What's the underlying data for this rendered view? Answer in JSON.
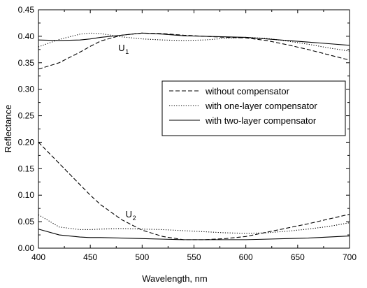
{
  "chart_data": {
    "type": "line",
    "title": "",
    "xlabel": "Wavelength, nm",
    "ylabel": "Reflectance",
    "xlim": [
      400,
      700
    ],
    "ylim": [
      0.0,
      0.45
    ],
    "x_ticks": [
      "400",
      "450",
      "500",
      "550",
      "600",
      "650",
      "700"
    ],
    "y_ticks": [
      "0.00",
      "0.05",
      "0.10",
      "0.15",
      "0.20",
      "0.25",
      "0.30",
      "0.35",
      "0.40",
      "0.45"
    ],
    "grid": false,
    "legend_position": "right",
    "x": [
      400,
      420,
      440,
      450,
      460,
      480,
      500,
      520,
      540,
      560,
      580,
      600,
      620,
      640,
      660,
      680,
      700
    ],
    "series": [
      {
        "name": "without compensator",
        "style": "dashed",
        "group": "U1",
        "values": [
          0.338,
          0.35,
          0.37,
          0.381,
          0.391,
          0.402,
          0.406,
          0.405,
          0.402,
          0.4,
          0.398,
          0.397,
          0.392,
          0.384,
          0.375,
          0.365,
          0.355
        ]
      },
      {
        "name": "with one-layer compensator",
        "style": "dotted",
        "group": "U1",
        "values": [
          0.38,
          0.394,
          0.404,
          0.406,
          0.405,
          0.399,
          0.395,
          0.393,
          0.392,
          0.393,
          0.396,
          0.398,
          0.396,
          0.391,
          0.385,
          0.378,
          0.372
        ]
      },
      {
        "name": "with two-layer compensator",
        "style": "solid",
        "group": "U1",
        "values": [
          0.393,
          0.392,
          0.393,
          0.395,
          0.398,
          0.402,
          0.406,
          0.404,
          0.401,
          0.4,
          0.399,
          0.398,
          0.395,
          0.392,
          0.389,
          0.386,
          0.383
        ]
      },
      {
        "name": "without compensator",
        "style": "dashed",
        "group": "U2",
        "values": [
          0.2,
          0.16,
          0.12,
          0.1,
          0.082,
          0.054,
          0.034,
          0.022,
          0.016,
          0.016,
          0.018,
          0.022,
          0.03,
          0.038,
          0.046,
          0.055,
          0.064
        ]
      },
      {
        "name": "with one-layer compensator",
        "style": "dotted",
        "group": "U2",
        "values": [
          0.063,
          0.04,
          0.035,
          0.035,
          0.036,
          0.037,
          0.036,
          0.035,
          0.033,
          0.031,
          0.029,
          0.028,
          0.029,
          0.032,
          0.036,
          0.041,
          0.048
        ]
      },
      {
        "name": "with two-layer compensator",
        "style": "solid",
        "group": "U2",
        "values": [
          0.036,
          0.025,
          0.021,
          0.02,
          0.02,
          0.019,
          0.018,
          0.017,
          0.016,
          0.016,
          0.016,
          0.016,
          0.017,
          0.018,
          0.019,
          0.021,
          0.023
        ]
      }
    ],
    "legend": [
      "without compensator",
      "with one-layer compensator",
      "with two-layer compensator"
    ],
    "annotations": [
      {
        "text": "U",
        "subscript": "1",
        "x": 477,
        "y": 0.372
      },
      {
        "text": "U",
        "subscript": "2",
        "x": 484,
        "y": 0.058
      }
    ]
  }
}
